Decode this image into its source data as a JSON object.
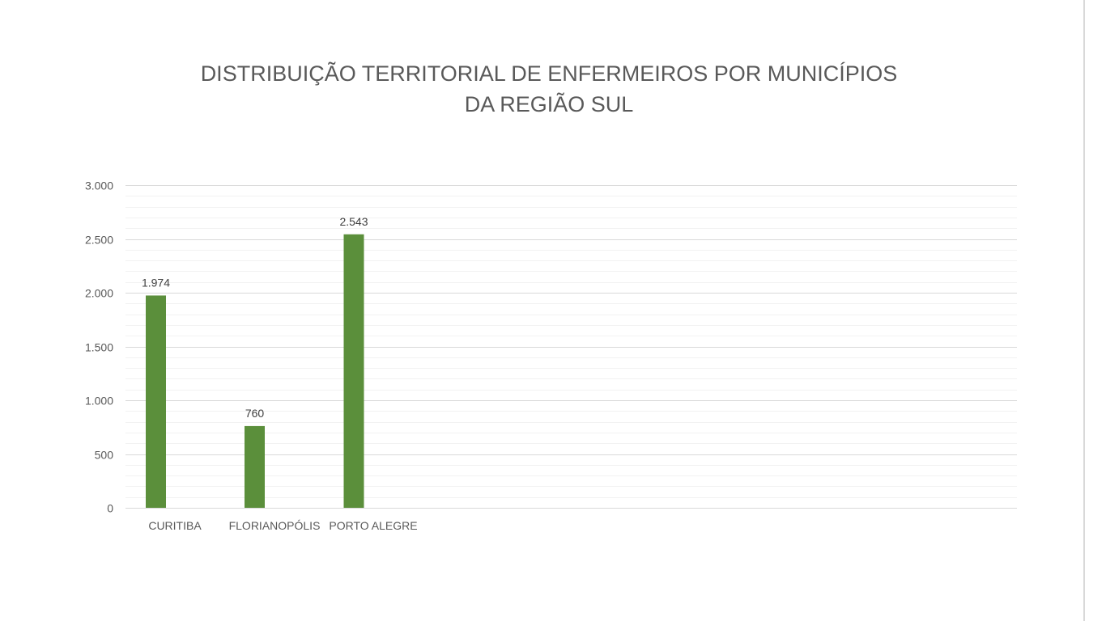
{
  "chart_data": {
    "type": "bar",
    "title_lines": [
      "DISTRIBUIÇÃO TERRITORIAL DE ENFERMEIROS POR MUNICÍPIOS",
      "DA REGIÃO SUL"
    ],
    "categories": [
      "CURITIBA",
      "FLORIANOPÓLIS",
      "PORTO ALEGRE"
    ],
    "values": [
      1974,
      760,
      2543
    ],
    "value_labels": [
      "1.974",
      "760",
      "2.543"
    ],
    "ylim": [
      0,
      3000
    ],
    "yticks": [
      0,
      500,
      1000,
      1500,
      2000,
      2500,
      3000
    ],
    "ytick_labels": [
      "0",
      "500",
      "1.000",
      "1.500",
      "2.000",
      "2.500",
      "3.000"
    ],
    "grid": true,
    "minor_grid": true,
    "legend": "none",
    "bar_color": "#5b8f3b",
    "grid_color": "#d9d9d9",
    "minor_grid_color": "#f2f2f2"
  }
}
